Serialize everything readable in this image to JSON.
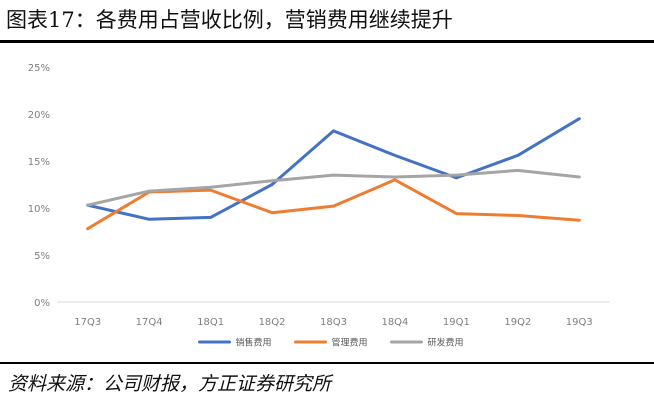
{
  "header": {
    "title": "图表17：各费用占营收比例，营销费用继续提升"
  },
  "footer": {
    "source": "资料来源：公司财报，方正证券研究所"
  },
  "chart_data": {
    "type": "line",
    "categories": [
      "17Q3",
      "17Q4",
      "18Q1",
      "18Q2",
      "18Q3",
      "18Q4",
      "19Q1",
      "19Q2",
      "19Q3"
    ],
    "y_ticks": [
      "0%",
      "5%",
      "10%",
      "15%",
      "20%",
      "25%"
    ],
    "ylim": [
      0,
      25
    ],
    "grid": false,
    "legend_position": "bottom",
    "series": [
      {
        "name": "销售费用",
        "color": "#4472c4",
        "values": [
          10.3,
          8.8,
          9.0,
          12.5,
          18.2,
          15.6,
          13.2,
          15.6,
          19.5
        ]
      },
      {
        "name": "管理费用",
        "color": "#ed7d31",
        "values": [
          7.8,
          11.7,
          11.9,
          9.5,
          10.2,
          13.0,
          9.4,
          9.2,
          8.7
        ]
      },
      {
        "name": "研发费用",
        "color": "#a5a5a5",
        "values": [
          10.3,
          11.8,
          12.2,
          12.9,
          13.5,
          13.3,
          13.5,
          14.0,
          13.3
        ]
      }
    ]
  }
}
